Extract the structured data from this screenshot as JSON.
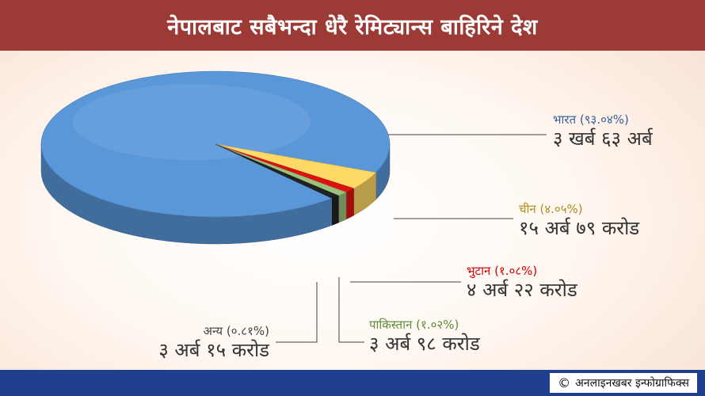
{
  "header": {
    "title": "नेपालबाट सबैभन्दा धेरै रेमिट्यान्स बाहिरिने देश"
  },
  "footer": {
    "credit_symbol": "©",
    "credit": "अनलाइनखबर इन्फोग्राफिक्स"
  },
  "colors": {
    "banner": "#9c3a36",
    "footer": "#1f3f8f"
  },
  "chart_data": {
    "type": "pie",
    "title": "नेपालबाट सबैभन्दा धेरै रेमिट्यान्स बाहिरिने देश",
    "unit": "percent",
    "slices": [
      {
        "name": "भारत",
        "value": 93.04,
        "pct_label": "भारत (९३.०४%)",
        "amount_label": "३ खर्ब ६३ अर्ब",
        "color": "#5a97d8",
        "label_color": "#365f9c"
      },
      {
        "name": "चीन",
        "value": 4.05,
        "pct_label": "चीन (४.०५%)",
        "amount_label": "१५ अर्ब ७९ करोड",
        "color": "#ffd966",
        "label_color": "#b08d1c"
      },
      {
        "name": "भुटान",
        "value": 1.08,
        "pct_label": "भुटान (१.०८%)",
        "amount_label": "४ अर्ब २२ करोड",
        "color": "#e01010",
        "label_color": "#d40000"
      },
      {
        "name": "पाकिस्तान",
        "value": 1.02,
        "pct_label": "पाकिस्तान (१.०२%)",
        "amount_label": "३ अर्ब ९८ करोड",
        "color": "#9bc27c",
        "label_color": "#5e8a3a"
      },
      {
        "name": "अन्य",
        "value": 0.81,
        "pct_label": "अन्य (०.८१%)",
        "amount_label": "३ अर्ब १५ करोड",
        "color": "#222222",
        "label_color": "#444444"
      }
    ]
  }
}
